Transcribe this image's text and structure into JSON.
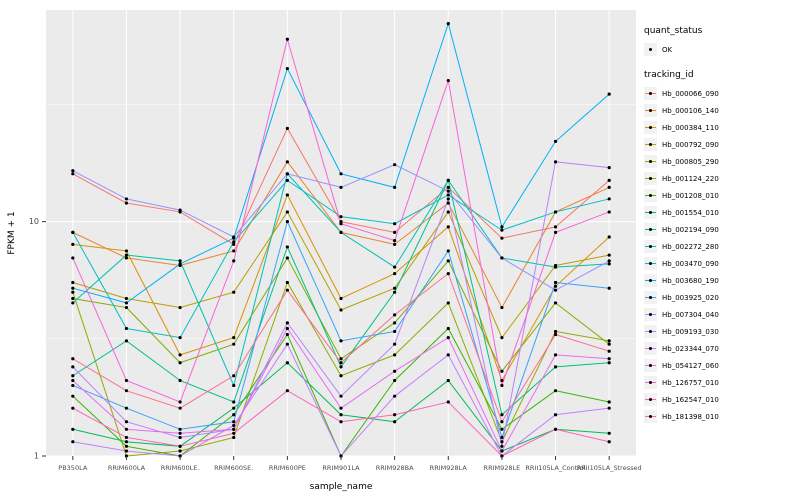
{
  "colors": {
    "panel_background": "#EBEBEB",
    "grid_line": "#FFFFFF",
    "point": "#000000",
    "axis_text": "#4D4D4D",
    "legend_key_background": "#F2F2F2"
  },
  "chart_data": {
    "type": "line",
    "title": "",
    "xlabel": "sample_name",
    "ylabel": "FPKM + 1",
    "y_scale": "log10",
    "ylim": [
      1,
      80
    ],
    "y_ticks": [
      {
        "value": 1,
        "label": "1"
      },
      {
        "value": 10,
        "label": "10"
      }
    ],
    "y_minor_ticks": [
      3.162,
      31.62
    ],
    "grid": true,
    "legend_position": "right",
    "categories": [
      "PB350LA",
      "RRIM600LA",
      "RRIM600LE.",
      "RRIM600SE.",
      "RRIM600PE",
      "RRIM901LA",
      "RRIM928BA",
      "RRIM928LA",
      "RRIM928LE",
      "RRII105LA_Control",
      "RRII105LA_Stressed"
    ],
    "legend": {
      "quant_status_title": "quant_status",
      "quant_status_items": [
        "OK"
      ],
      "tracking_id_title": "tracking_id"
    },
    "series": [
      {
        "name": "Hb_000066_090",
        "color": "#F8766D",
        "values": [
          16,
          12,
          11,
          8,
          25,
          10,
          9,
          14,
          8.5,
          9.5,
          15
        ]
      },
      {
        "name": "Hb_000106_140",
        "color": "#EA8331",
        "values": [
          9,
          7,
          6.5,
          7.5,
          18,
          9,
          8,
          12,
          4.3,
          11,
          14
        ]
      },
      {
        "name": "Hb_000384_110",
        "color": "#D89000",
        "values": [
          8,
          7.5,
          2.7,
          3.2,
          13,
          4.7,
          6,
          9.5,
          2.1,
          5.3,
          8.6
        ]
      },
      {
        "name": "Hb_000792_090",
        "color": "#B79F00",
        "values": [
          5.5,
          4.7,
          4.3,
          5,
          11,
          4.2,
          5.2,
          11,
          3.2,
          6.5,
          7.2
        ]
      },
      {
        "name": "Hb_000805_290",
        "color": "#93AA00",
        "values": [
          5,
          1.0,
          1.05,
          1.2,
          5.5,
          2.2,
          2.7,
          4.5,
          1.15,
          3.4,
          3.1
        ]
      },
      {
        "name": "Hb_001124_220",
        "color": "#7CAE00",
        "values": [
          4.7,
          4.3,
          2.5,
          3.0,
          7,
          2.6,
          3.7,
          6.8,
          2.3,
          4.5,
          3.0
        ]
      },
      {
        "name": "Hb_001208_010",
        "color": "#39B600",
        "values": [
          1.8,
          1.1,
          1.0,
          1.5,
          3.3,
          1.0,
          2.1,
          3.5,
          1.3,
          1.9,
          1.7
        ]
      },
      {
        "name": "Hb_001554_010",
        "color": "#00BC51",
        "values": [
          1.3,
          1.15,
          1.1,
          1.6,
          2.5,
          1.5,
          1.4,
          2.1,
          1.05,
          1.3,
          1.25
        ]
      },
      {
        "name": "Hb_002194_090",
        "color": "#00C087",
        "values": [
          2.2,
          3.1,
          2.1,
          1.7,
          7.8,
          2.4,
          5,
          15,
          1.5,
          2.4,
          2.5
        ]
      },
      {
        "name": "Hb_002272_280",
        "color": "#00C0B2",
        "values": [
          4.5,
          7.2,
          6.8,
          2.0,
          16,
          9,
          6.4,
          15,
          7,
          6.4,
          6.6
        ]
      },
      {
        "name": "Hb_003470_090",
        "color": "#00BFC4",
        "values": [
          9,
          3.5,
          3.2,
          8.2,
          15,
          10.5,
          9.8,
          13,
          9.2,
          11,
          12.5
        ]
      },
      {
        "name": "Hb_003680_190",
        "color": "#00B0F6",
        "values": [
          5.2,
          4.5,
          6.6,
          8.5,
          45,
          16,
          14,
          70,
          9.5,
          22,
          35
        ]
      },
      {
        "name": "Hb_003925_020",
        "color": "#35A2FF",
        "values": [
          2.0,
          1.6,
          1.3,
          1.4,
          10,
          3.1,
          3.4,
          7.5,
          1.2,
          5.5,
          5.2
        ]
      },
      {
        "name": "Hb_007304_040",
        "color": "#9590FF",
        "values": [
          16.5,
          12.5,
          11.2,
          8.6,
          16,
          14,
          17.5,
          13.5,
          7,
          5.1,
          6.8
        ]
      },
      {
        "name": "Hb_009193_030",
        "color": "#B983FF",
        "values": [
          2.4,
          1.4,
          1.2,
          1.3,
          3.7,
          1.8,
          3.0,
          12.5,
          1.1,
          18,
          17
        ]
      },
      {
        "name": "Hb_023344_070",
        "color": "#C77CFF",
        "values": [
          1.15,
          1.05,
          1.0,
          1.35,
          3.0,
          1.0,
          1.8,
          2.7,
          1.0,
          1.5,
          1.6
        ]
      },
      {
        "name": "Hb_054127_060",
        "color": "#E76BF3",
        "values": [
          2.1,
          1.3,
          1.25,
          1.3,
          3.5,
          1.6,
          2.3,
          3.2,
          1.05,
          2.7,
          2.6
        ]
      },
      {
        "name": "Hb_126757_010",
        "color": "#FA62DB",
        "values": [
          7,
          2.1,
          1.7,
          6.8,
          60,
          9.8,
          8.3,
          40,
          2.0,
          9,
          11
        ]
      },
      {
        "name": "Hb_162547_010",
        "color": "#FF62BC",
        "values": [
          1.6,
          1.2,
          1.1,
          1.25,
          1.9,
          1.4,
          1.5,
          1.7,
          1.0,
          1.3,
          1.15
        ]
      },
      {
        "name": "Hb_181398_010",
        "color": "#FF6C91",
        "values": [
          2.6,
          1.9,
          1.6,
          2.2,
          5.1,
          2.5,
          4.0,
          6.0,
          1.4,
          3.3,
          2.8
        ]
      }
    ]
  }
}
